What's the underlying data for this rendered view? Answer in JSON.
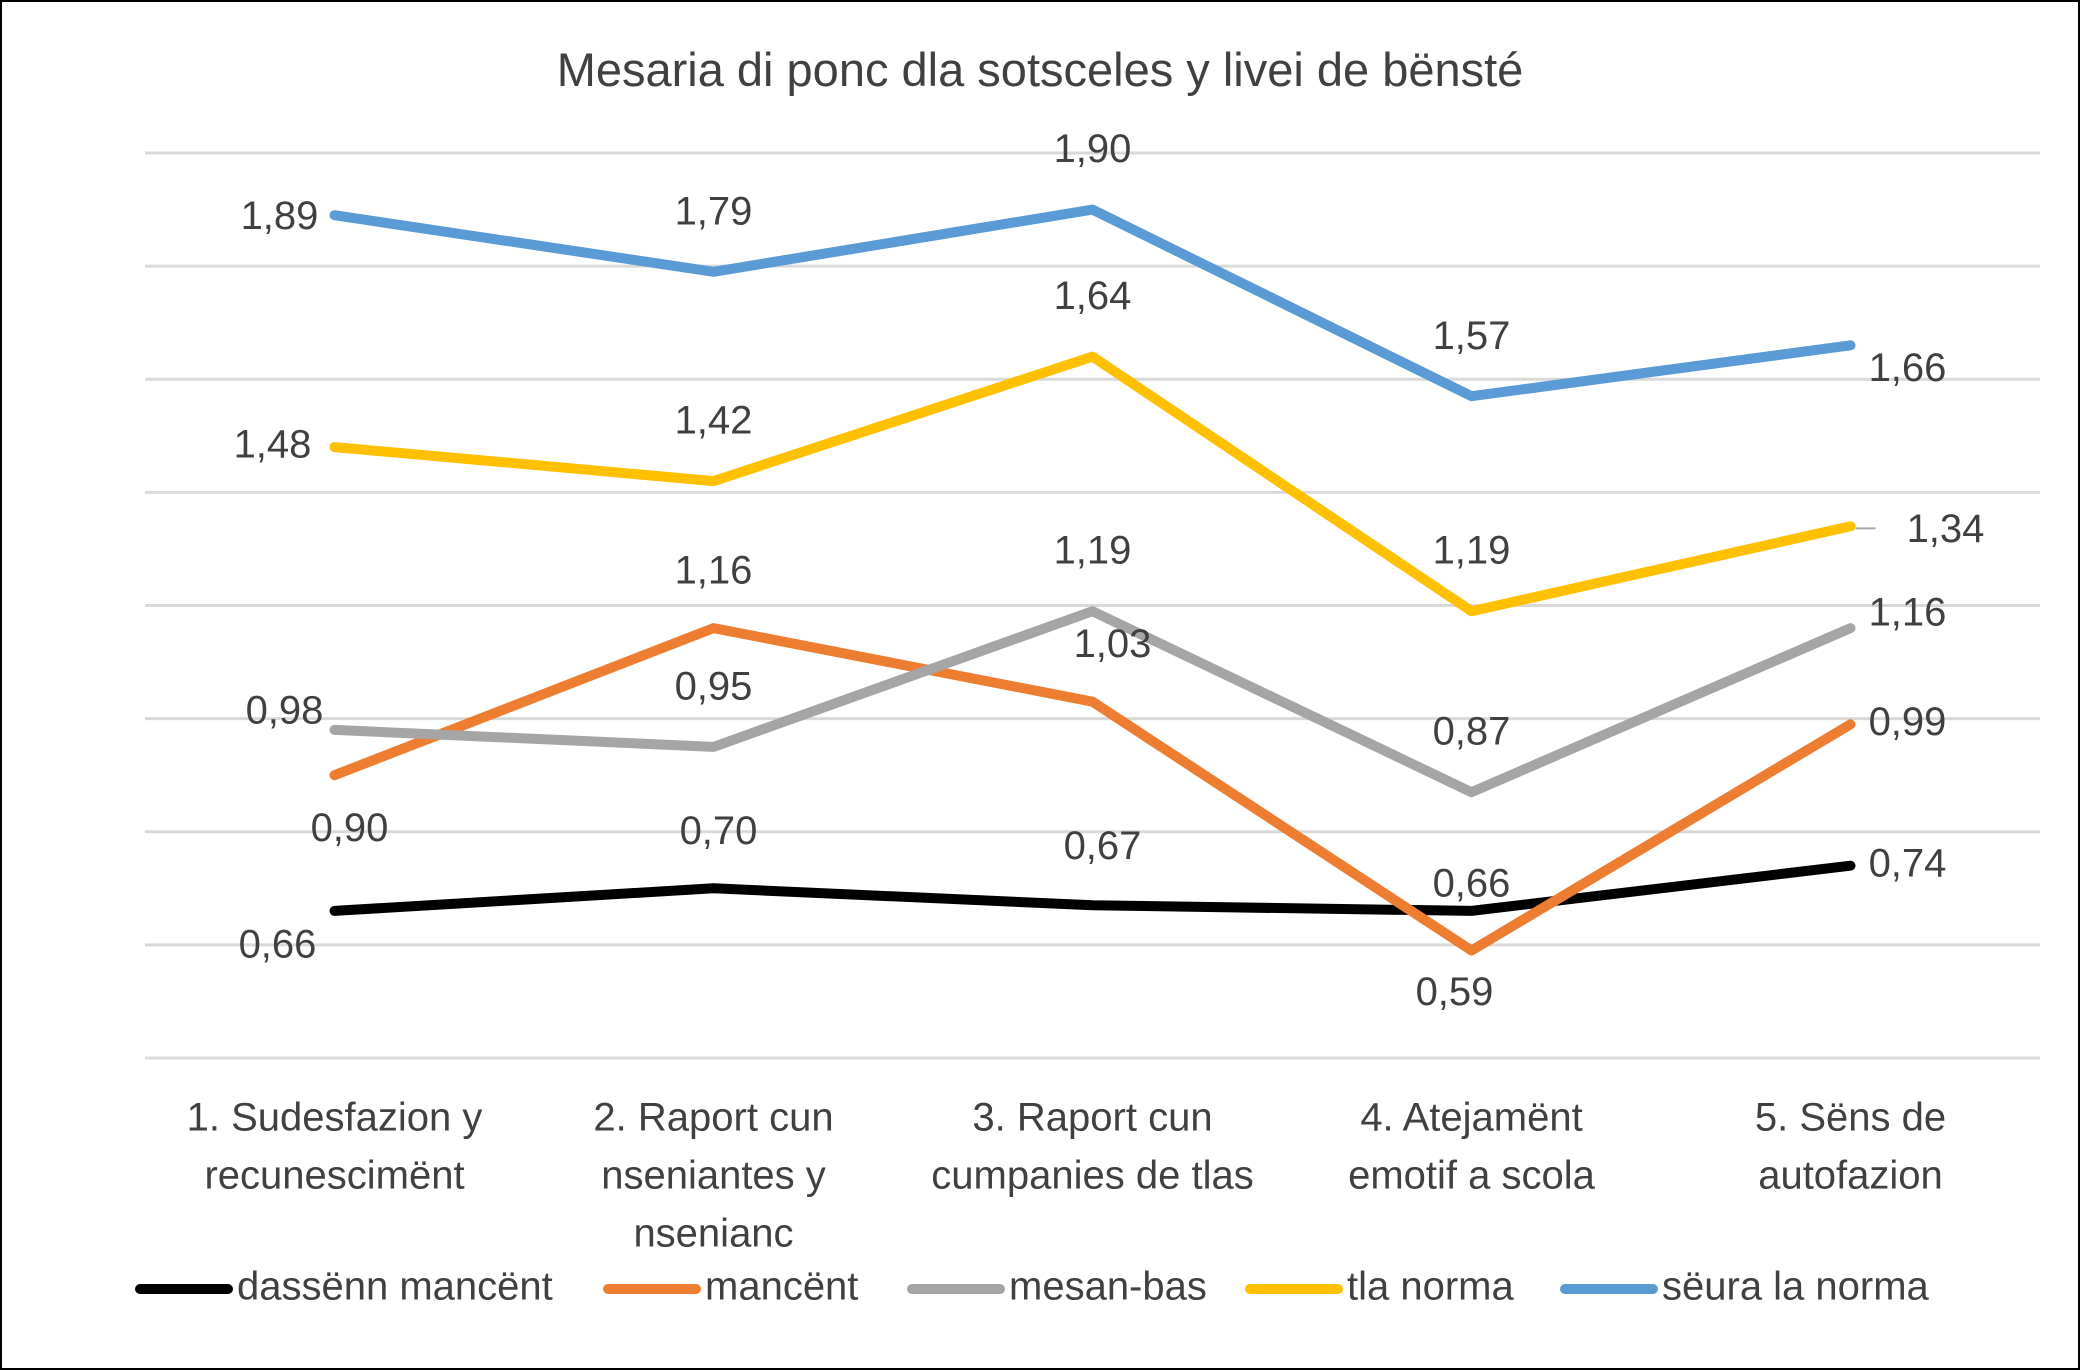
{
  "chart_data": {
    "type": "line",
    "title": "Mesaria di ponc dla sotsceles y livei de bënsté",
    "xlabel": "",
    "ylabel": "",
    "categories": [
      [
        "1. Sudesfazion y",
        "recunescimënt"
      ],
      [
        "2. Raport cun",
        "nseniantes y",
        "nsenianc"
      ],
      [
        "3. Raport cun",
        "cumpanies de tlas"
      ],
      [
        "4. Atejamënt",
        "emotif a scola"
      ],
      [
        "5. Sëns de",
        "autofazion"
      ]
    ],
    "series": [
      {
        "name": "dassënn mancënt",
        "color": "#000000",
        "values": [
          0.66,
          0.7,
          0.67,
          0.66,
          0.74
        ],
        "labels": [
          "0,66",
          "0,70",
          "0,67",
          "0,66",
          "0,74"
        ]
      },
      {
        "name": "mancënt",
        "color": "#ED7D31",
        "values": [
          0.9,
          1.16,
          1.03,
          0.59,
          0.99
        ],
        "labels": [
          "0,90",
          "1,16",
          "1,03",
          "0,59",
          "0,99"
        ]
      },
      {
        "name": "mesan-bas",
        "color": "#A5A5A5",
        "values": [
          0.98,
          0.95,
          1.19,
          0.87,
          1.16
        ],
        "labels": [
          "0,98",
          "0,95",
          "1,19",
          "0,87",
          "1,16"
        ]
      },
      {
        "name": "tla norma",
        "color": "#FFC000",
        "values": [
          1.48,
          1.42,
          1.64,
          1.19,
          1.34
        ],
        "labels": [
          "1,48",
          "1,42",
          "1,64",
          "1,19",
          "1,34"
        ]
      },
      {
        "name": "sëura la norma",
        "color": "#5B9BD5",
        "values": [
          1.89,
          1.79,
          1.9,
          1.57,
          1.66
        ],
        "labels": [
          "1,89",
          "1,79",
          "1,90",
          "1,57",
          "1,66"
        ]
      }
    ],
    "ylim": [
      0.4,
      2.0
    ],
    "grid": true,
    "y_tick_labels_shown": false,
    "legend": "bottom"
  }
}
